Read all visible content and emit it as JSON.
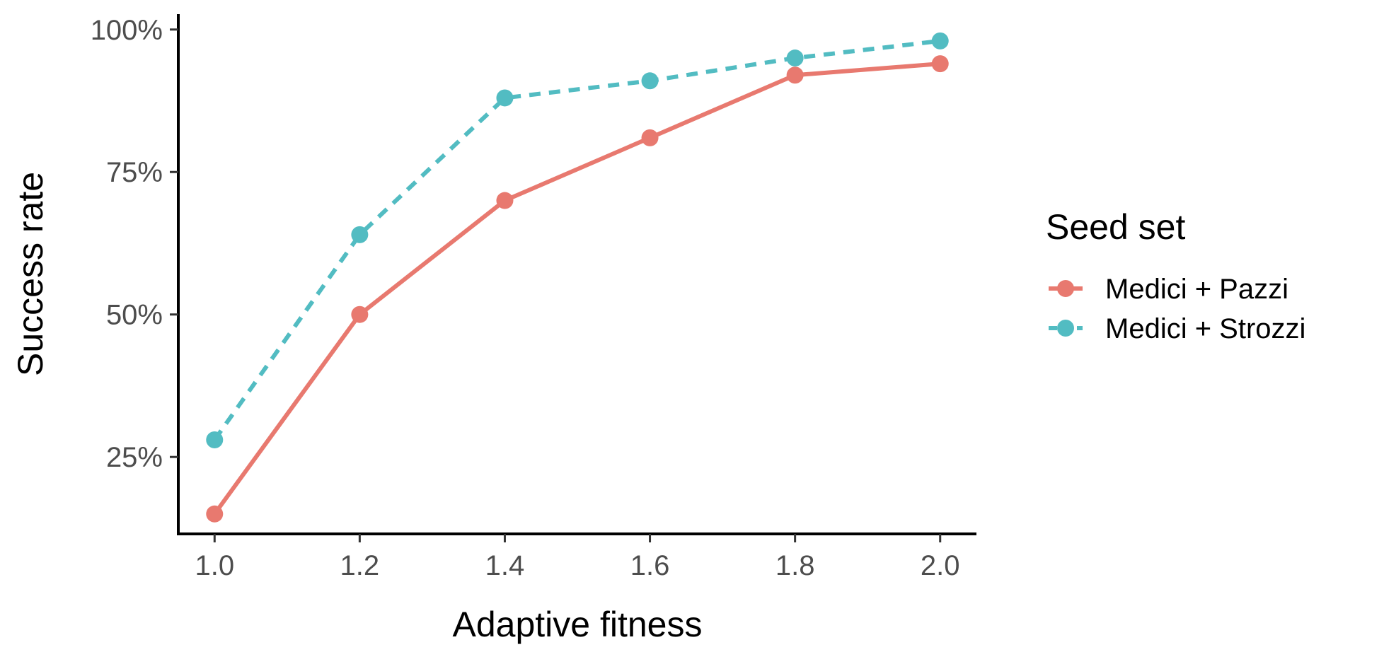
{
  "chart_data": {
    "type": "line",
    "xlabel": "Adaptive fitness",
    "ylabel": "Success rate",
    "x": [
      1.0,
      1.2,
      1.4,
      1.6,
      1.8,
      2.0
    ],
    "x_ticks": [
      1.0,
      1.2,
      1.4,
      1.6,
      1.8,
      2.0
    ],
    "x_tick_labels": [
      "1.0",
      "1.2",
      "1.4",
      "1.6",
      "1.8",
      "2.0"
    ],
    "xlim": [
      0.95,
      2.05
    ],
    "y_ticks": [
      25,
      50,
      75,
      100
    ],
    "y_tick_labels": [
      "25%",
      "50%",
      "75%",
      "100%"
    ],
    "ylim": [
      11.5,
      102.7
    ],
    "grid": false,
    "legend": {
      "title": "Seed set",
      "position": "right"
    },
    "series": [
      {
        "name": "Medici + Pazzi",
        "values": [
          15,
          50,
          70,
          81,
          92,
          94
        ],
        "color": "#E8796F",
        "line_style": "solid"
      },
      {
        "name": "Medici + Strozzi",
        "values": [
          28,
          64,
          88,
          91,
          95,
          98
        ],
        "color": "#52BCC2",
        "line_style": "dashed"
      }
    ]
  }
}
